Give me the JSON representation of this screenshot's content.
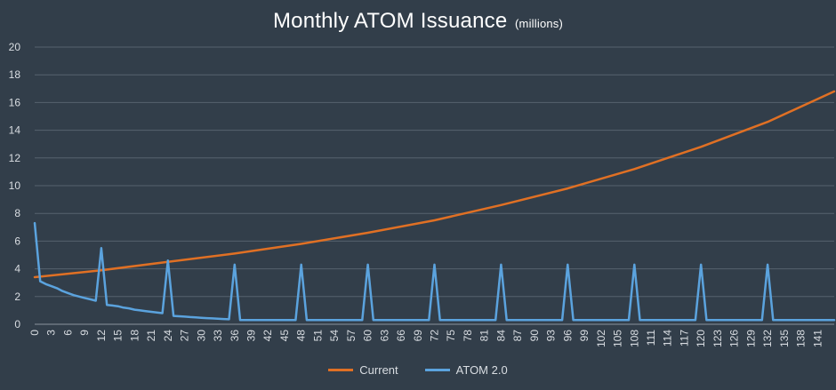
{
  "chart_data": {
    "type": "line",
    "title": "Monthly ATOM Issuance",
    "subtitle": "(millions)",
    "ylim": [
      0,
      20
    ],
    "y_ticks": [
      0,
      2,
      4,
      6,
      8,
      10,
      12,
      14,
      16,
      18,
      20
    ],
    "xlim": [
      0,
      144
    ],
    "x_ticks": [
      0,
      3,
      6,
      9,
      12,
      15,
      18,
      21,
      24,
      27,
      30,
      33,
      36,
      39,
      42,
      45,
      48,
      51,
      54,
      57,
      60,
      63,
      66,
      69,
      72,
      75,
      78,
      81,
      84,
      87,
      90,
      93,
      96,
      99,
      102,
      105,
      108,
      111,
      114,
      117,
      120,
      123,
      126,
      129,
      132,
      135,
      138,
      141
    ],
    "grid": true,
    "legend": "bottom",
    "colors": {
      "Current": "#e07024",
      "ATOM 2.0": "#5ba3de"
    },
    "series": [
      {
        "name": "Current",
        "x": [
          0,
          12,
          24,
          36,
          48,
          60,
          72,
          84,
          96,
          108,
          120,
          132,
          144
        ],
        "y": [
          3.4,
          3.9,
          4.5,
          5.1,
          5.8,
          6.6,
          7.5,
          8.6,
          9.8,
          11.2,
          12.8,
          14.6,
          16.8
        ]
      },
      {
        "name": "ATOM 2.0",
        "x": [
          0,
          1,
          2,
          3,
          4,
          5,
          6,
          7,
          8,
          9,
          10,
          11,
          12,
          13,
          14,
          15,
          16,
          17,
          18,
          19,
          20,
          21,
          22,
          23,
          24,
          25,
          26,
          27,
          28,
          29,
          30,
          31,
          32,
          33,
          34,
          35,
          36,
          37,
          47,
          48,
          49,
          59,
          60,
          61,
          71,
          72,
          73,
          83,
          84,
          85,
          95,
          96,
          97,
          107,
          108,
          109,
          119,
          120,
          121,
          131,
          132,
          133,
          144
        ],
        "y": [
          7.3,
          3.1,
          2.9,
          2.75,
          2.6,
          2.4,
          2.25,
          2.1,
          2.0,
          1.9,
          1.8,
          1.7,
          5.5,
          1.4,
          1.35,
          1.3,
          1.2,
          1.15,
          1.05,
          1.0,
          0.95,
          0.9,
          0.85,
          0.8,
          4.6,
          0.6,
          0.58,
          0.55,
          0.52,
          0.5,
          0.47,
          0.44,
          0.42,
          0.4,
          0.38,
          0.36,
          4.3,
          0.3,
          0.3,
          4.3,
          0.3,
          0.3,
          4.3,
          0.3,
          0.3,
          4.3,
          0.3,
          0.3,
          4.3,
          0.3,
          0.3,
          4.3,
          0.3,
          0.3,
          4.3,
          0.3,
          0.3,
          4.3,
          0.3,
          0.3,
          4.3,
          0.3,
          0.3
        ]
      }
    ]
  }
}
